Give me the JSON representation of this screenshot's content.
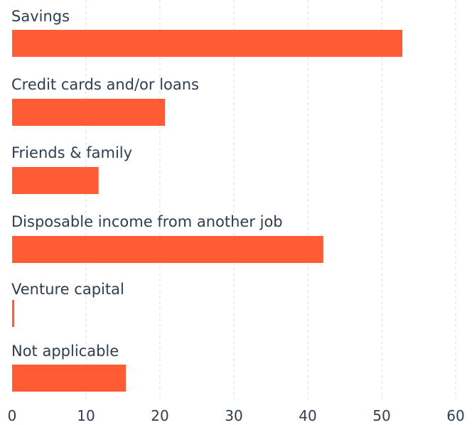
{
  "chart_data": {
    "type": "bar",
    "orientation": "horizontal",
    "categories": [
      "Savings",
      "Credit cards and/or loans",
      "Friends & family",
      "Disposable income from another job",
      "Venture capital",
      "Not applicable"
    ],
    "values": [
      52.8,
      20.7,
      11.7,
      42.1,
      0.3,
      15.4
    ],
    "xlim": [
      0,
      60
    ],
    "x_ticks": [
      "0",
      "10",
      "20",
      "30",
      "40",
      "50",
      "60"
    ],
    "grid": true,
    "legend": "none",
    "bar_color": "#ff5c35",
    "grid_color": "#d9dde3",
    "text_color": "#2d3e50"
  }
}
